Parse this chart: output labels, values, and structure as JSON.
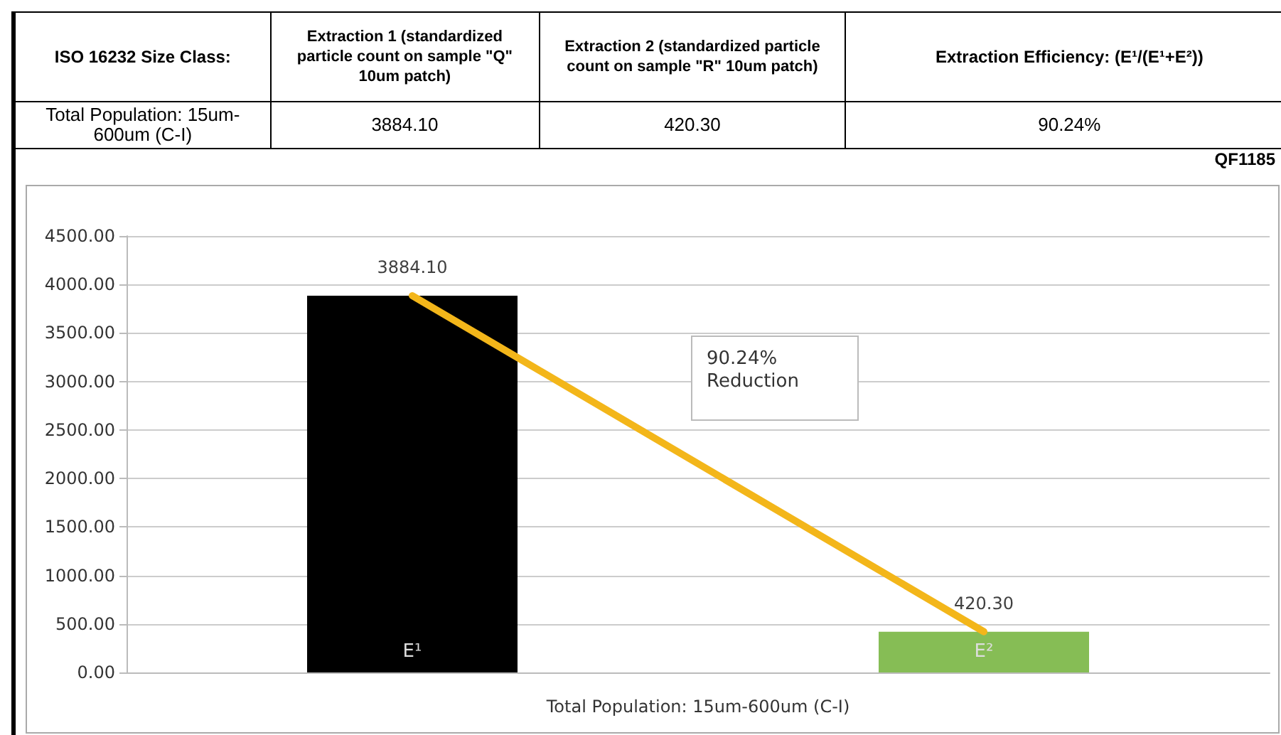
{
  "chart_data": {
    "type": "bar",
    "categories": [
      "E¹",
      "E²"
    ],
    "xlabel": "Total Population: 15um-600um (C-I)",
    "values": [
      3884.1,
      420.3
    ],
    "colors": [
      "#000000",
      "#86bd55"
    ],
    "value_labels": [
      "3884.10",
      "420.30"
    ],
    "ylim": [
      0,
      4500
    ],
    "yticks": [
      {
        "value": 0,
        "label": "0.00"
      },
      {
        "value": 500,
        "label": "500.00"
      },
      {
        "value": 1000,
        "label": "1000.00"
      },
      {
        "value": 1500,
        "label": "1500.00"
      },
      {
        "value": 2000,
        "label": "2000.00"
      },
      {
        "value": 2500,
        "label": "2500.00"
      },
      {
        "value": 3000,
        "label": "3000.00"
      },
      {
        "value": 3500,
        "label": "3500.00"
      },
      {
        "value": 4000,
        "label": "4000.00"
      },
      {
        "value": 4500,
        "label": "4500.00"
      }
    ],
    "grid": "y",
    "annotations": [
      "ISO 16232 Size Class:",
      "Extraction 1 (standardized particle count on sample \"Q\" 10um patch)",
      "Extraction 2 (standardized particle count on sample \"R\" 10um patch)",
      "Extraction Efficiency: (E¹/(E¹+E²))",
      "Total Population: 15um-600um (C-I)",
      "3884.10",
      "420.30",
      "90.24%",
      "QF1185",
      "90.24%\nReduction"
    ]
  }
}
